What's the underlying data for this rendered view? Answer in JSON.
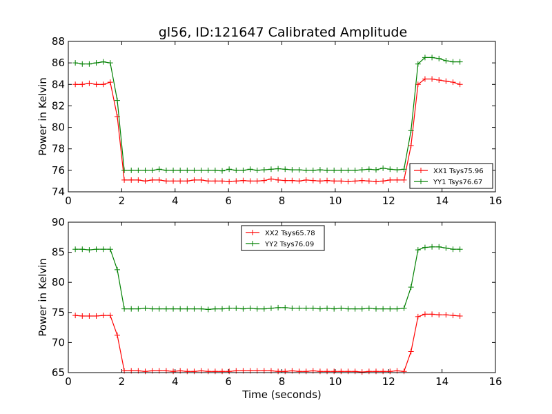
{
  "title": "gl56, ID:121647 Calibrated Amplitude",
  "chart_data": [
    {
      "type": "line",
      "title": "gl56, ID:121647 Calibrated Amplitude",
      "xlabel": "",
      "ylabel": "Power in Kelvin",
      "xlim": [
        0,
        16
      ],
      "ylim": [
        74,
        88
      ],
      "xticks": [
        0,
        2,
        4,
        6,
        8,
        10,
        12,
        14,
        16
      ],
      "yticks": [
        74,
        76,
        78,
        80,
        82,
        84,
        86,
        88
      ],
      "legend_position": "lower-right",
      "x": [
        0.262,
        0.524,
        0.786,
        1.048,
        1.31,
        1.572,
        1.834,
        2.096,
        2.358,
        2.62,
        2.882,
        3.144,
        3.406,
        3.668,
        3.93,
        4.192,
        4.454,
        4.716,
        4.978,
        5.24,
        5.502,
        5.764,
        6.026,
        6.288,
        6.55,
        6.812,
        7.074,
        7.336,
        7.598,
        7.86,
        8.122,
        8.384,
        8.646,
        8.908,
        9.17,
        9.432,
        9.694,
        9.956,
        10.218,
        10.48,
        10.742,
        11.004,
        11.266,
        11.528,
        11.79,
        12.052,
        12.314,
        12.576,
        12.838,
        13.1,
        13.362,
        13.624,
        13.886,
        14.148,
        14.41,
        14.672
      ],
      "series": [
        {
          "name": "XX1 Tsys75.96",
          "color": "#ff0000",
          "values": [
            84.0,
            84.0,
            84.1,
            84.0,
            84.0,
            84.2,
            81.0,
            75.1,
            75.1,
            75.1,
            75.0,
            75.1,
            75.1,
            75.0,
            75.0,
            75.0,
            75.0,
            75.1,
            75.1,
            75.0,
            75.0,
            75.0,
            74.95,
            75.0,
            75.05,
            75.0,
            75.0,
            75.05,
            75.2,
            75.1,
            75.05,
            75.05,
            75.0,
            75.1,
            75.05,
            75.0,
            75.05,
            75.0,
            75.0,
            74.95,
            75.0,
            75.05,
            75.0,
            74.95,
            75.0,
            75.1,
            75.1,
            75.1,
            78.3,
            84.0,
            84.5,
            84.5,
            84.4,
            84.3,
            84.2,
            84.0
          ]
        },
        {
          "name": "YY1 Tsys76.67",
          "color": "#008000",
          "values": [
            86.0,
            85.9,
            85.9,
            86.0,
            86.1,
            86.0,
            82.5,
            76.0,
            76.0,
            76.0,
            76.0,
            76.0,
            76.1,
            76.0,
            76.0,
            76.0,
            76.0,
            76.0,
            76.0,
            76.0,
            76.0,
            75.95,
            76.1,
            76.0,
            76.0,
            76.1,
            76.0,
            76.05,
            76.1,
            76.15,
            76.1,
            76.05,
            76.05,
            76.0,
            76.0,
            76.05,
            76.0,
            76.0,
            76.0,
            76.0,
            76.0,
            76.05,
            76.1,
            76.05,
            76.2,
            76.1,
            76.05,
            76.1,
            79.7,
            85.9,
            86.5,
            86.5,
            86.4,
            86.2,
            86.1,
            86.1
          ]
        }
      ]
    },
    {
      "type": "line",
      "title": "",
      "xlabel": "Time (seconds)",
      "ylabel": "Power in Kelvin",
      "xlim": [
        0,
        16
      ],
      "ylim": [
        65,
        90
      ],
      "xticks": [
        0,
        2,
        4,
        6,
        8,
        10,
        12,
        14,
        16
      ],
      "yticks": [
        65,
        70,
        75,
        80,
        85,
        90
      ],
      "legend_position": "upper-center",
      "x": [
        0.262,
        0.524,
        0.786,
        1.048,
        1.31,
        1.572,
        1.834,
        2.096,
        2.358,
        2.62,
        2.882,
        3.144,
        3.406,
        3.668,
        3.93,
        4.192,
        4.454,
        4.716,
        4.978,
        5.24,
        5.502,
        5.764,
        6.026,
        6.288,
        6.55,
        6.812,
        7.074,
        7.336,
        7.598,
        7.86,
        8.122,
        8.384,
        8.646,
        8.908,
        9.17,
        9.432,
        9.694,
        9.956,
        10.218,
        10.48,
        10.742,
        11.004,
        11.266,
        11.528,
        11.79,
        12.052,
        12.314,
        12.576,
        12.838,
        13.1,
        13.362,
        13.624,
        13.886,
        14.148,
        14.41,
        14.672
      ],
      "series": [
        {
          "name": "XX2 Tsys65.78",
          "color": "#ff0000",
          "values": [
            74.5,
            74.4,
            74.4,
            74.4,
            74.5,
            74.5,
            71.2,
            65.3,
            65.3,
            65.3,
            65.2,
            65.3,
            65.3,
            65.3,
            65.2,
            65.3,
            65.2,
            65.2,
            65.3,
            65.2,
            65.2,
            65.2,
            65.2,
            65.3,
            65.3,
            65.3,
            65.3,
            65.3,
            65.3,
            65.2,
            65.2,
            65.3,
            65.2,
            65.2,
            65.3,
            65.2,
            65.2,
            65.2,
            65.2,
            65.2,
            65.2,
            65.1,
            65.2,
            65.2,
            65.2,
            65.2,
            65.3,
            65.2,
            68.5,
            74.3,
            74.7,
            74.7,
            74.6,
            74.6,
            74.5,
            74.4
          ]
        },
        {
          "name": "YY2 Tsys76.09",
          "color": "#008000",
          "values": [
            85.5,
            85.5,
            85.4,
            85.5,
            85.5,
            85.5,
            82.1,
            75.6,
            75.6,
            75.6,
            75.7,
            75.6,
            75.6,
            75.6,
            75.6,
            75.6,
            75.6,
            75.6,
            75.6,
            75.5,
            75.6,
            75.6,
            75.7,
            75.7,
            75.6,
            75.7,
            75.6,
            75.6,
            75.7,
            75.8,
            75.8,
            75.7,
            75.7,
            75.7,
            75.7,
            75.6,
            75.7,
            75.6,
            75.7,
            75.6,
            75.6,
            75.6,
            75.7,
            75.6,
            75.6,
            75.6,
            75.6,
            75.7,
            79.2,
            85.4,
            85.8,
            85.9,
            85.9,
            85.7,
            85.5,
            85.5
          ]
        }
      ]
    }
  ]
}
